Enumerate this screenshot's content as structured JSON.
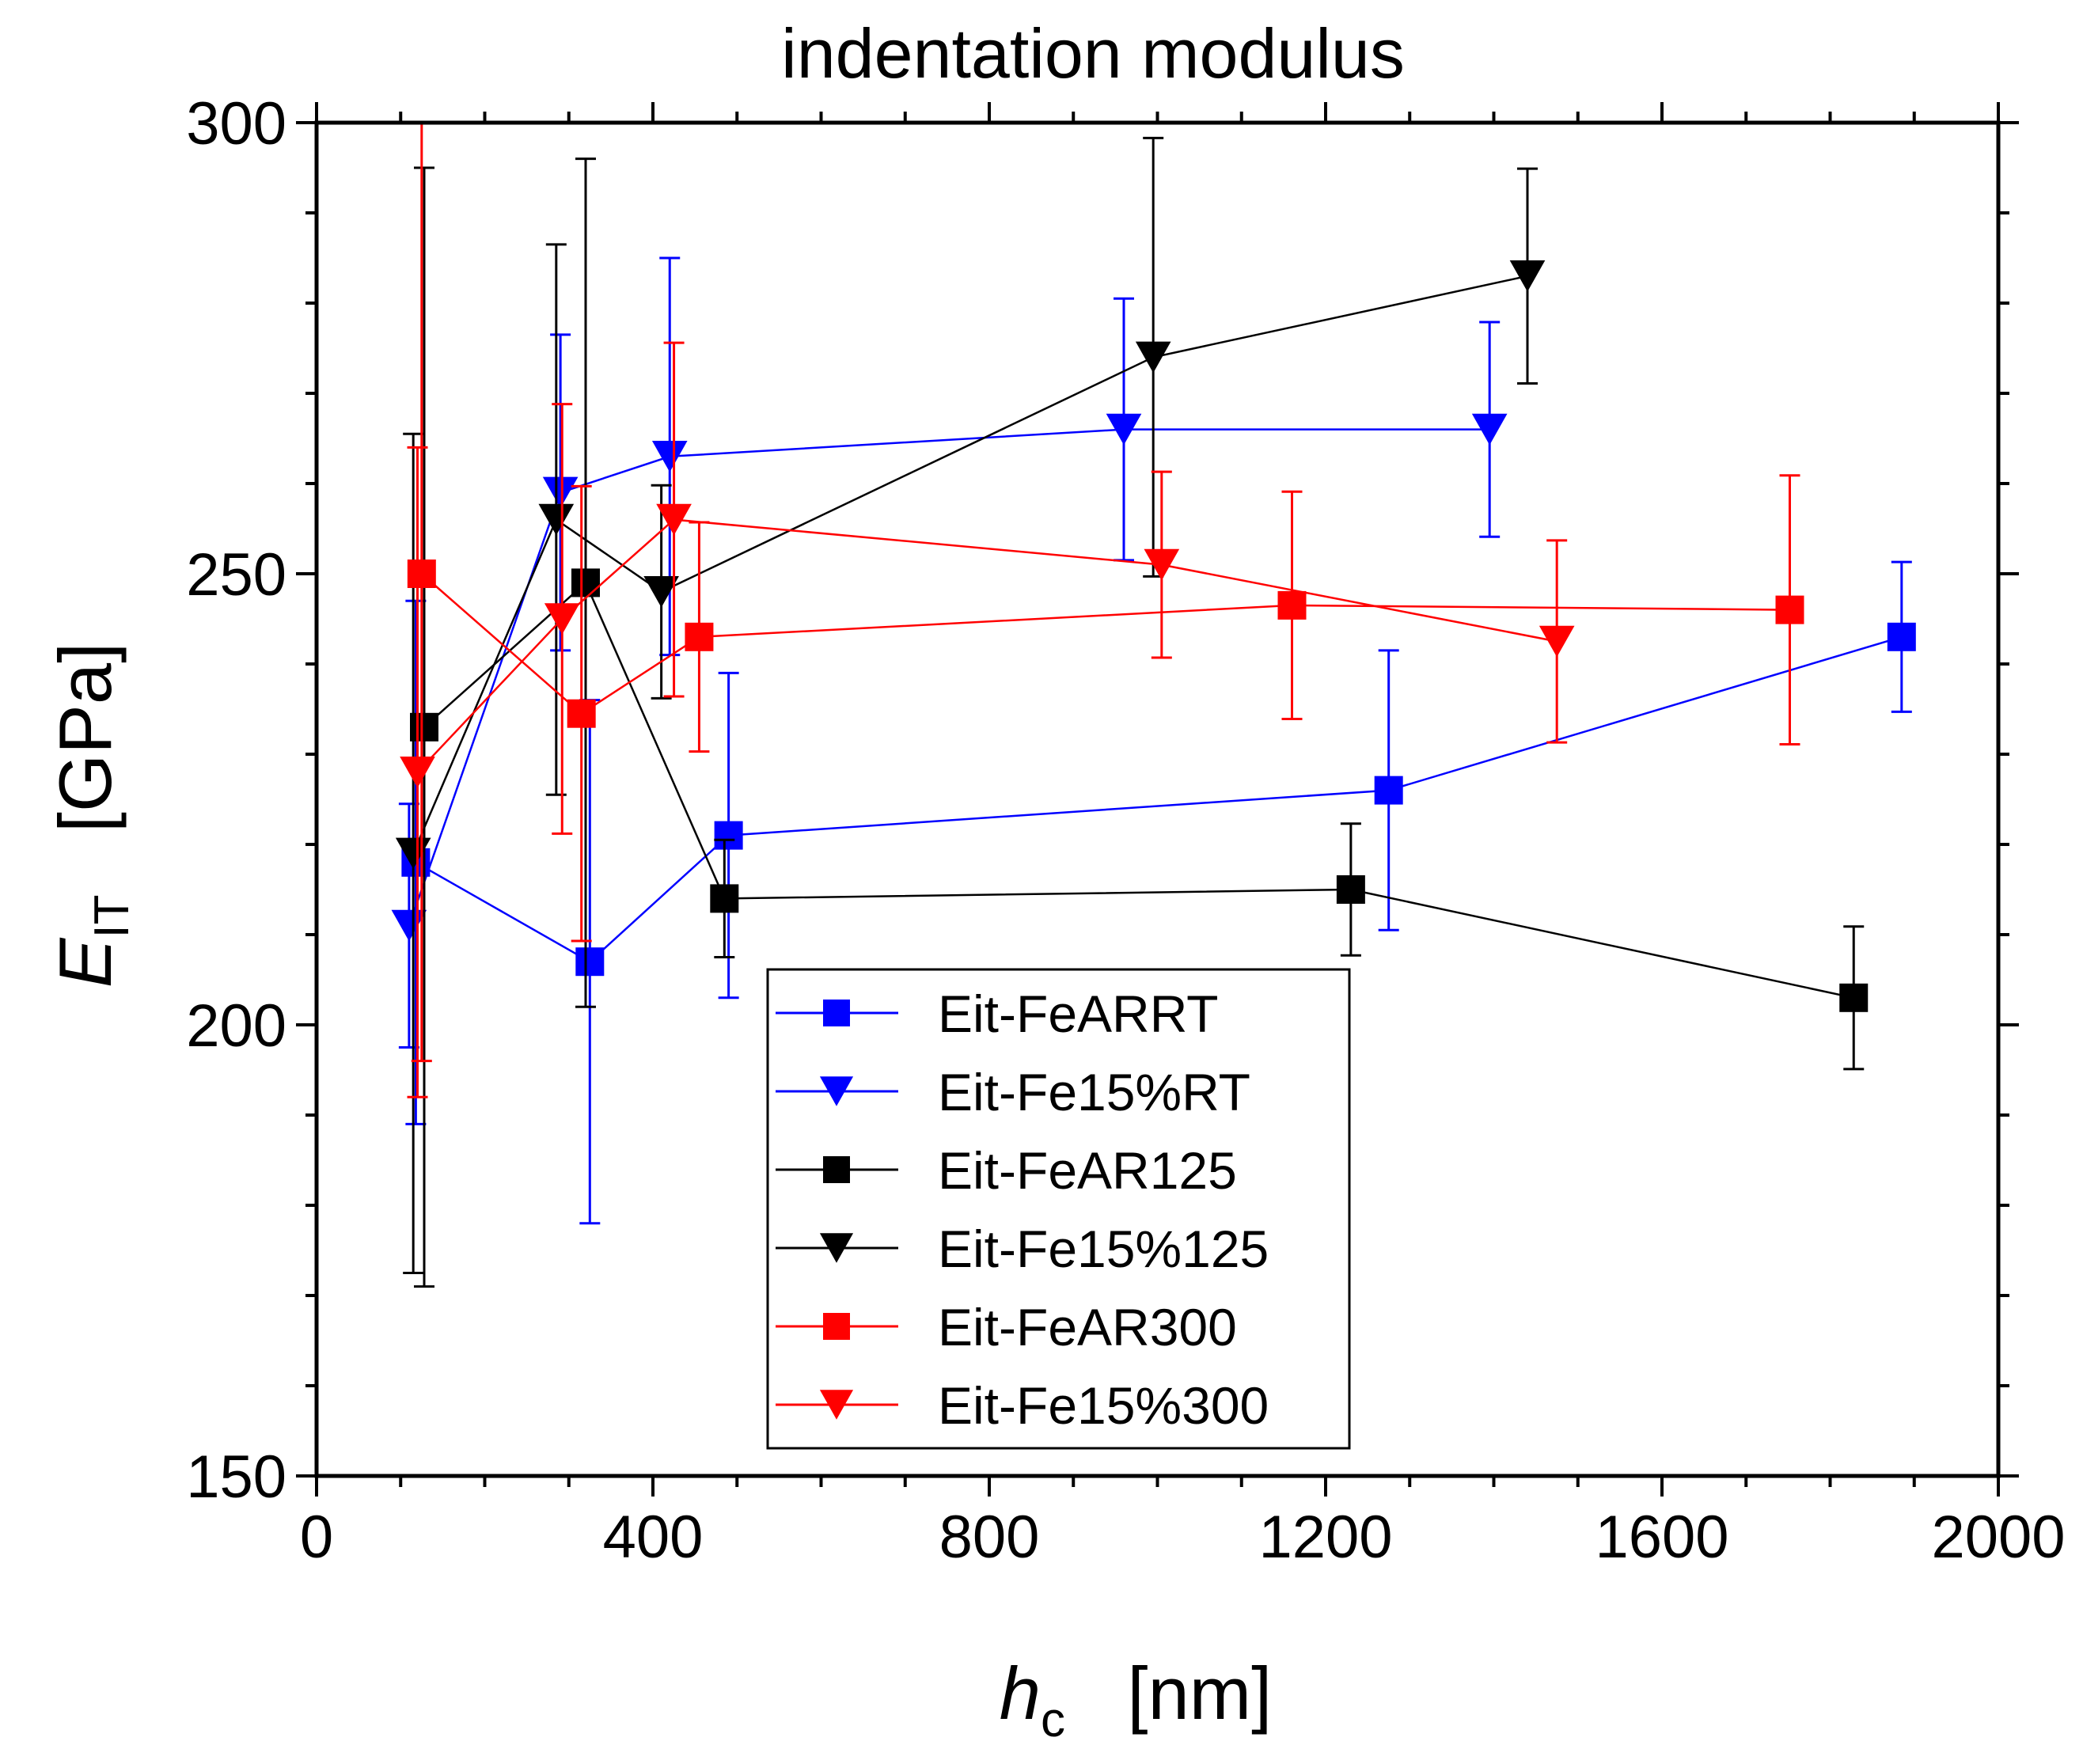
{
  "chart_data": {
    "type": "scatter",
    "title": "indentation modulus",
    "xlabel": {
      "main": "h",
      "sub": "c",
      "unit": "[nm]"
    },
    "ylabel": {
      "main": "E",
      "sub": "IT",
      "unit": "[GPa]"
    },
    "xlim": [
      0,
      2000
    ],
    "ylim": [
      150,
      300
    ],
    "x_ticks": [
      0,
      400,
      800,
      1200,
      1600,
      2000
    ],
    "y_ticks": [
      150,
      200,
      250,
      300
    ],
    "legend_position": "bottom-center",
    "series": [
      {
        "name": "Eit-FeARRT",
        "color": "#0000ff",
        "marker": "square",
        "points": [
          {
            "x": 118,
            "y": 218,
            "err": 29
          },
          {
            "x": 325,
            "y": 207,
            "err": 29
          },
          {
            "x": 490,
            "y": 221,
            "err": 18
          },
          {
            "x": 1275,
            "y": 226,
            "err": 15.5
          },
          {
            "x": 1885,
            "y": 243,
            "err": 8.3
          }
        ]
      },
      {
        "name": "Eit-Fe15%RT",
        "color": "#0000ff",
        "marker": "triangle-down",
        "points": [
          {
            "x": 110,
            "y": 211,
            "err": 13.5
          },
          {
            "x": 290,
            "y": 259,
            "err": 17.5
          },
          {
            "x": 420,
            "y": 263,
            "err": 22
          },
          {
            "x": 960,
            "y": 266,
            "err": 14.5
          },
          {
            "x": 1395,
            "y": 266,
            "err": 11.9
          }
        ]
      },
      {
        "name": "Eit-FeAR125",
        "color": "#000000",
        "marker": "square",
        "points": [
          {
            "x": 128,
            "y": 233,
            "err": 62
          },
          {
            "x": 320,
            "y": 249,
            "err": 47
          },
          {
            "x": 485,
            "y": 214,
            "err": 6.5
          },
          {
            "x": 1230,
            "y": 215,
            "err": 7.3
          },
          {
            "x": 1828,
            "y": 203,
            "err": 7.9
          }
        ]
      },
      {
        "name": "Eit-Fe15%125",
        "color": "#000000",
        "marker": "triangle-down",
        "points": [
          {
            "x": 115,
            "y": 219,
            "err": 46.5
          },
          {
            "x": 285,
            "y": 256,
            "err": 30.5
          },
          {
            "x": 410,
            "y": 248,
            "err": 11.8
          },
          {
            "x": 995,
            "y": 274,
            "err": 24.3
          },
          {
            "x": 1440,
            "y": 283,
            "err": 11.9
          }
        ]
      },
      {
        "name": "Eit-FeAR300",
        "color": "#ff0000",
        "marker": "square",
        "points": [
          {
            "x": 125,
            "y": 250,
            "err": 54
          },
          {
            "x": 315,
            "y": 234.5,
            "err": 25.2
          },
          {
            "x": 455,
            "y": 243,
            "err": 12.7
          },
          {
            "x": 1160,
            "y": 246.5,
            "err": 12.6
          },
          {
            "x": 1752,
            "y": 246,
            "err": 14.9
          }
        ]
      },
      {
        "name": "Eit-Fe15%300",
        "color": "#ff0000",
        "marker": "triangle-down",
        "points": [
          {
            "x": 120,
            "y": 228,
            "err": 36
          },
          {
            "x": 292,
            "y": 245,
            "err": 23.8
          },
          {
            "x": 425,
            "y": 256,
            "err": 19.6
          },
          {
            "x": 1005,
            "y": 251,
            "err": 10.3
          },
          {
            "x": 1475,
            "y": 242.5,
            "err": 11.2
          }
        ]
      }
    ]
  }
}
